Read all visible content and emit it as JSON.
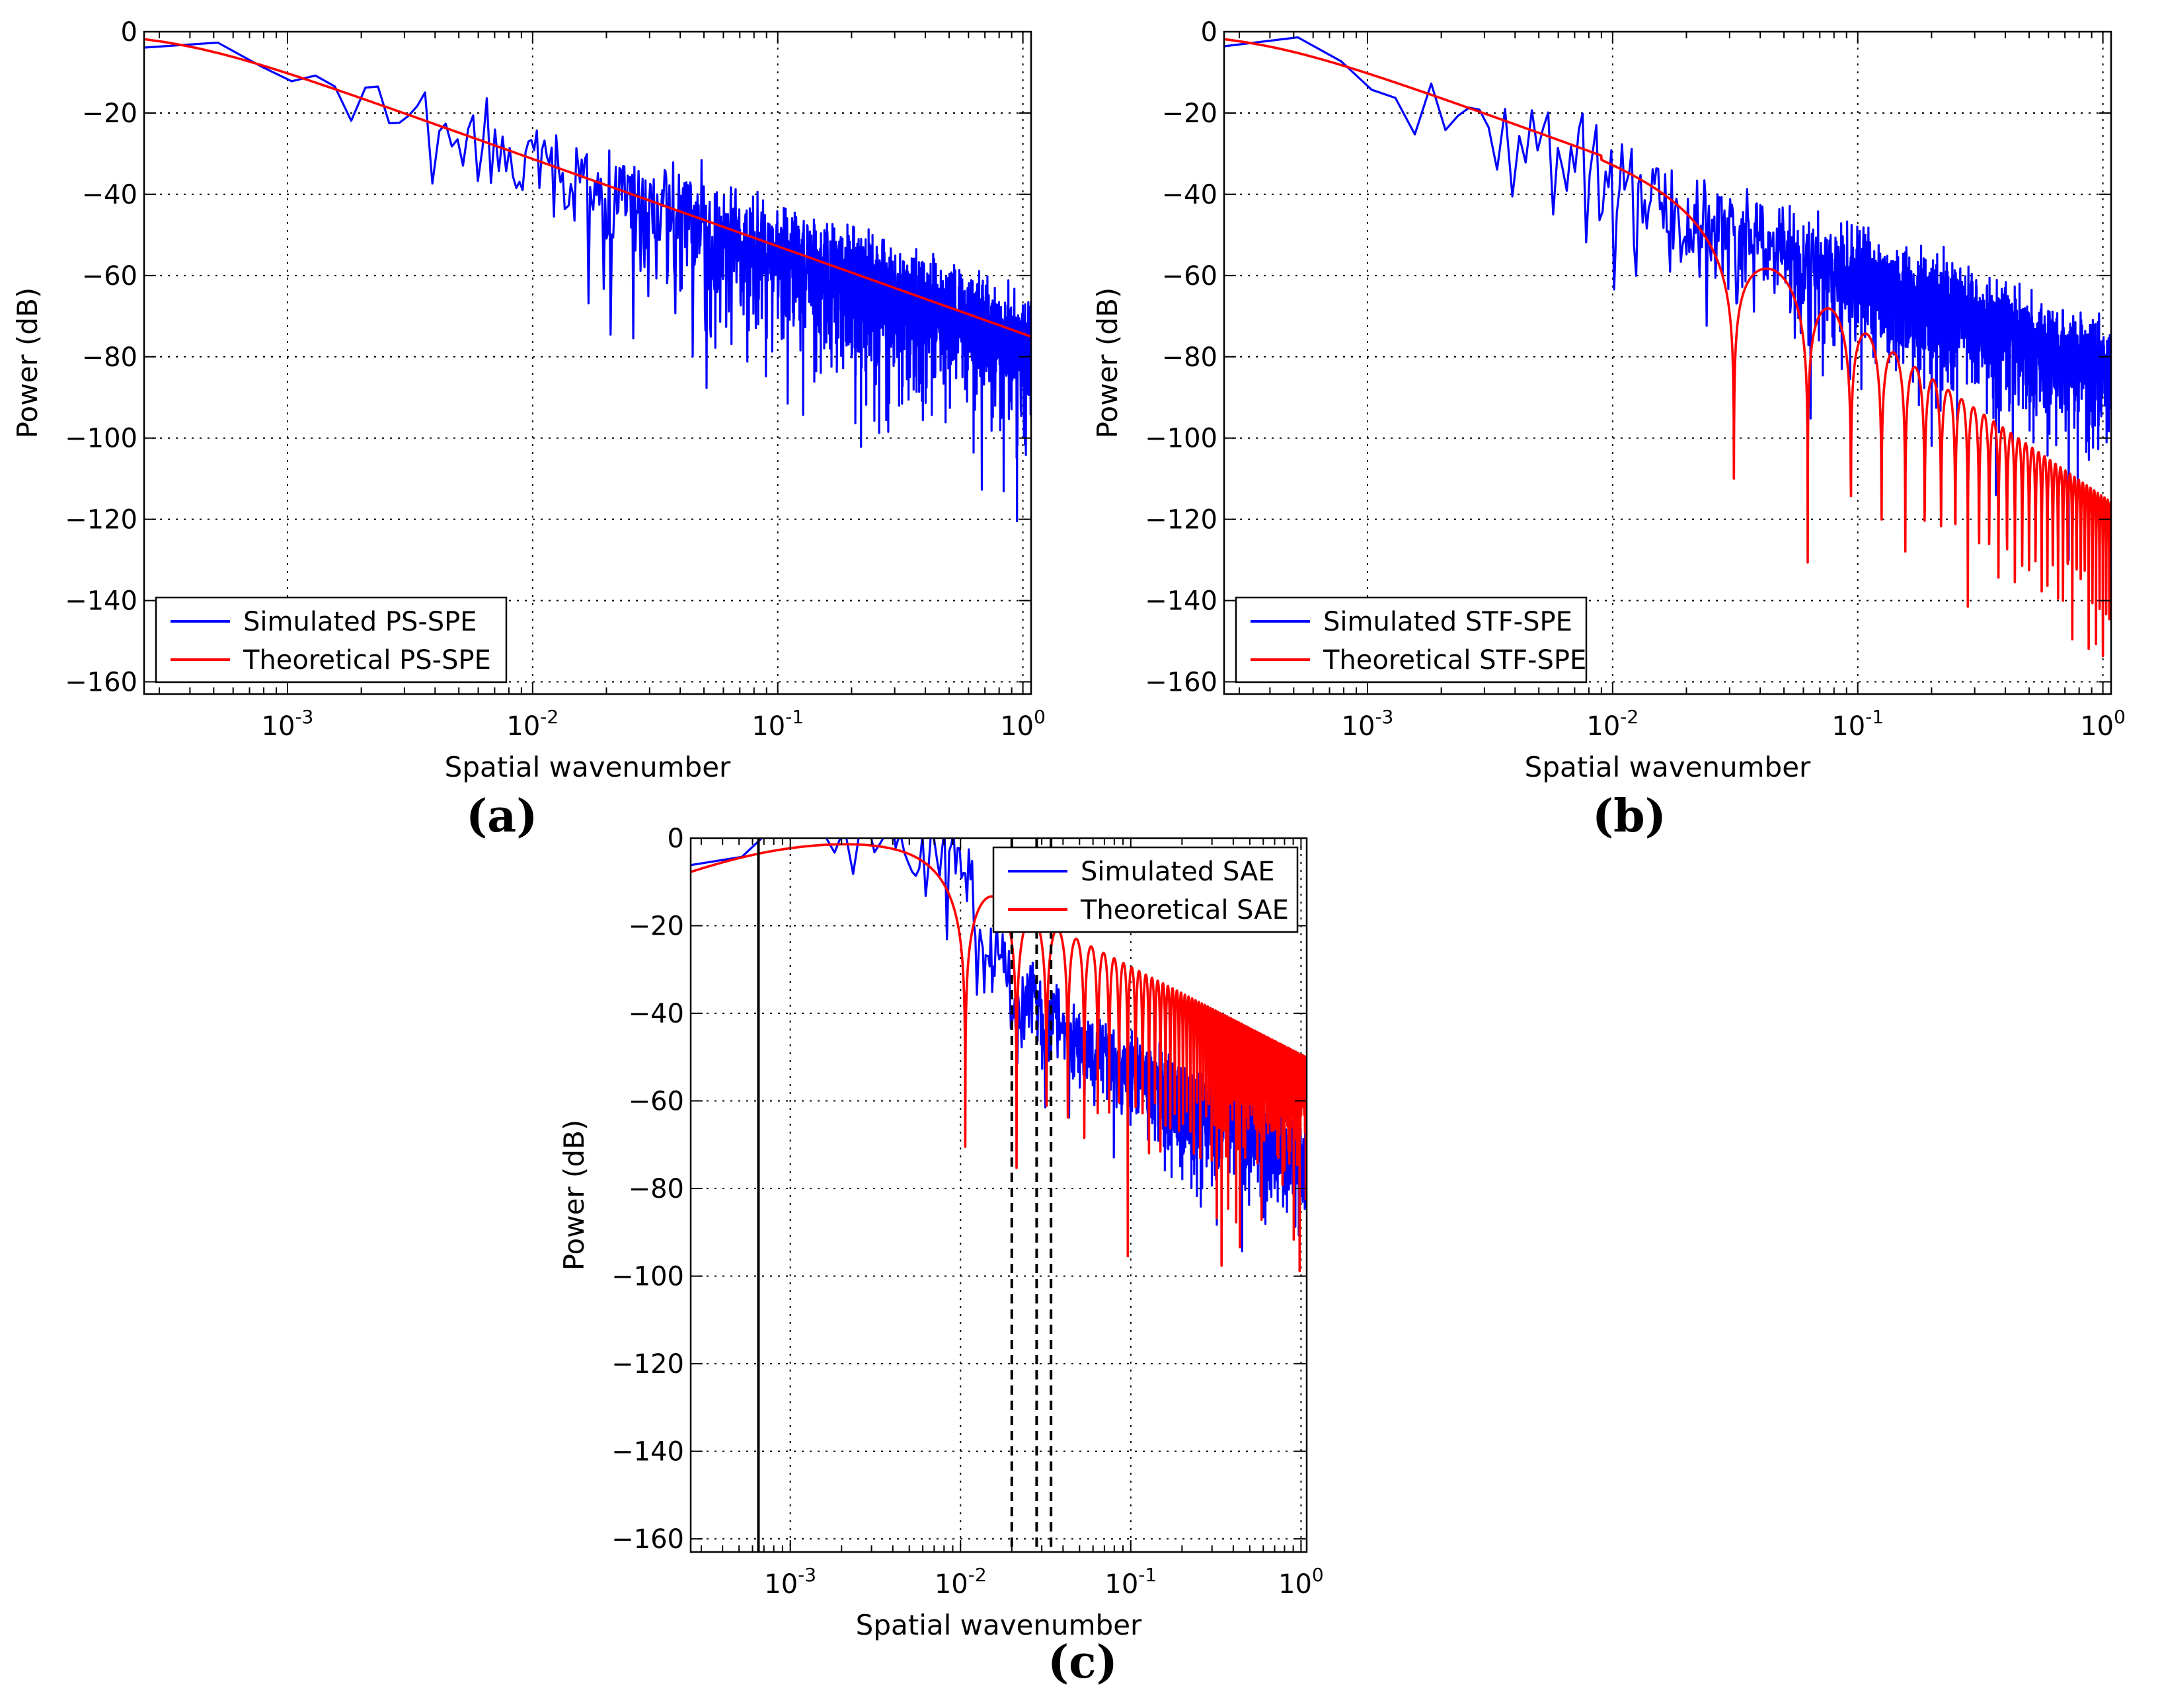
{
  "chart_data": [
    {
      "id": "a",
      "type": "line",
      "panel_label": "(a)",
      "xlabel": "Spatial wavenumber",
      "ylabel": "Power (dB)",
      "xscale": "log",
      "xlim": [
        0.00026,
        1.08
      ],
      "ylim": [
        -163,
        0
      ],
      "grid": true,
      "legend_position": "lower-left",
      "x_ticks": [
        {
          "value": 0.001,
          "base": "10",
          "exp": "-3"
        },
        {
          "value": 0.01,
          "base": "10",
          "exp": "-2"
        },
        {
          "value": 0.1,
          "base": "10",
          "exp": "-1"
        },
        {
          "value": 1,
          "base": "10",
          "exp": "0"
        }
      ],
      "y_ticks": [
        0,
        -20,
        -40,
        -60,
        -80,
        -100,
        -120,
        -140,
        -160
      ],
      "series": [
        {
          "name": "Simulated PS-SPE",
          "color": "#0000ff",
          "model": "ps",
          "noise_amp": 16,
          "noise_start": 0.0015
        },
        {
          "name": "Theoretical PS-SPE",
          "color": "#ff0000",
          "model": "ps"
        }
      ],
      "vlines": []
    },
    {
      "id": "b",
      "type": "line",
      "panel_label": "(b)",
      "xlabel": "Spatial wavenumber",
      "ylabel": "Power (dB)",
      "xscale": "log",
      "xlim": [
        0.00026,
        1.08
      ],
      "ylim": [
        -163,
        0
      ],
      "grid": true,
      "legend_position": "lower-left",
      "x_ticks": [
        {
          "value": 0.001,
          "base": "10",
          "exp": "-3"
        },
        {
          "value": 0.01,
          "base": "10",
          "exp": "-2"
        },
        {
          "value": 0.1,
          "base": "10",
          "exp": "-1"
        },
        {
          "value": 1,
          "base": "10",
          "exp": "0"
        }
      ],
      "y_ticks": [
        0,
        -20,
        -40,
        -60,
        -80,
        -100,
        -120,
        -140,
        -160
      ],
      "series": [
        {
          "name": "Simulated STF-SPE",
          "color": "#0000ff",
          "model": "stf",
          "noise_amp": 14,
          "noise_start": 0.0015
        },
        {
          "name": "Theoretical STF-SPE",
          "color": "#ff0000",
          "model": "stf"
        }
      ],
      "vlines": []
    },
    {
      "id": "c",
      "type": "line",
      "panel_label": "(c)",
      "xlabel": "Spatial wavenumber",
      "ylabel": "Power (dB)",
      "xscale": "log",
      "xlim": [
        0.00026,
        1.08
      ],
      "ylim": [
        -163,
        0
      ],
      "grid": true,
      "legend_position": "upper-right",
      "x_ticks": [
        {
          "value": 0.001,
          "base": "10",
          "exp": "-3"
        },
        {
          "value": 0.01,
          "base": "10",
          "exp": "-2"
        },
        {
          "value": 0.1,
          "base": "10",
          "exp": "-1"
        },
        {
          "value": 1,
          "base": "10",
          "exp": "0"
        }
      ],
      "y_ticks": [
        0,
        -20,
        -40,
        -60,
        -80,
        -100,
        -120,
        -140,
        -160
      ],
      "series": [
        {
          "name": "Simulated SAE",
          "color": "#0000ff",
          "model": "sae",
          "noise_amp": 9,
          "noise_start": 0.0011
        },
        {
          "name": "Theoretical SAE",
          "color": "#ff0000",
          "model": "sae"
        }
      ],
      "vlines": [
        {
          "x": 0.00065,
          "style": "solid"
        },
        {
          "x": 0.02,
          "style": "dashed"
        },
        {
          "x": 0.028,
          "style": "dashed"
        },
        {
          "x": 0.034,
          "style": "dashed"
        }
      ]
    }
  ]
}
